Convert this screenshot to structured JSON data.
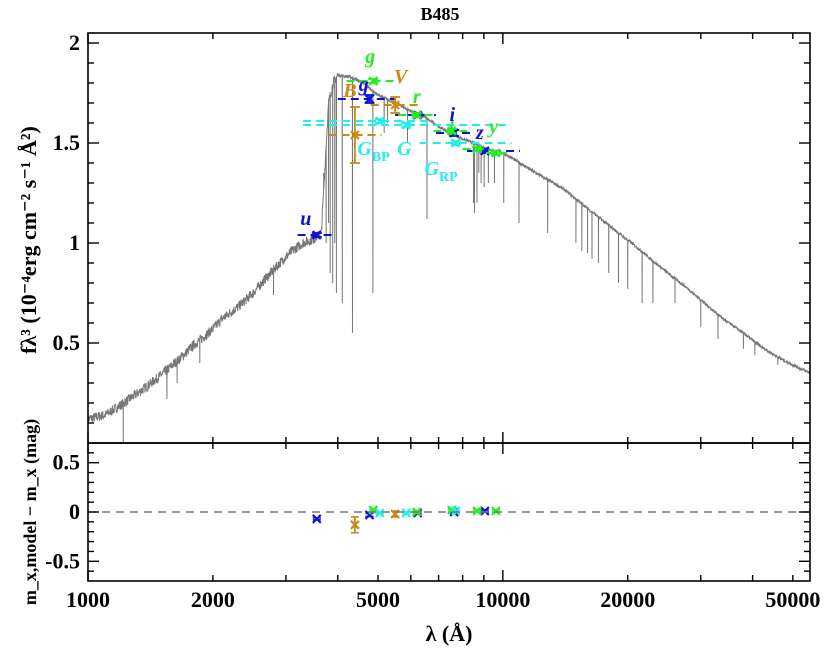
{
  "chart_data": {
    "type": "scatter",
    "title": "B485",
    "xlabel": "λ (Å)",
    "ylabel_top": "fλ³ (10⁻⁴erg cm⁻² s⁻¹ Å²)",
    "ylabel_bottom": "m_x,model − m_x (mag)",
    "x_scale": "log",
    "xlim": [
      1000,
      55000
    ],
    "ylim_top": [
      0,
      2.05
    ],
    "ylim_bottom": [
      -0.7,
      0.7
    ],
    "xticks": [
      1000,
      2000,
      5000,
      10000,
      20000,
      50000
    ],
    "xtick_labels": [
      "1000",
      "2000",
      "5000",
      "10000",
      "20000",
      "50000"
    ],
    "yticks_top": [
      0.5,
      1,
      1.5,
      2
    ],
    "ytick_labels_top": [
      "0.5",
      "1",
      "1.5",
      "2"
    ],
    "yticks_bottom": [
      -0.5,
      0,
      0.5
    ],
    "ytick_labels_bottom": [
      "-0.5",
      "0",
      "0.5"
    ],
    "colors": {
      "sdss": "#1010d0",
      "ps1": "#22ee22",
      "johnson": "#cc8811",
      "gaia": "#22eeee",
      "spectrum": "#777777",
      "zero_line": "#777777"
    },
    "spectrum_continuum": [
      [
        1000,
        0.12
      ],
      [
        1100,
        0.14
      ],
      [
        1200,
        0.19
      ],
      [
        1300,
        0.24
      ],
      [
        1400,
        0.29
      ],
      [
        1500,
        0.34
      ],
      [
        1600,
        0.39
      ],
      [
        1700,
        0.44
      ],
      [
        1800,
        0.49
      ],
      [
        1900,
        0.53
      ],
      [
        2000,
        0.57
      ],
      [
        2100,
        0.62
      ],
      [
        2300,
        0.68
      ],
      [
        2500,
        0.75
      ],
      [
        2700,
        0.83
      ],
      [
        2900,
        0.9
      ],
      [
        3100,
        0.96
      ],
      [
        3300,
        1.0
      ],
      [
        3500,
        1.02
      ],
      [
        3650,
        1.05
      ],
      [
        3800,
        1.7
      ],
      [
        3900,
        1.8
      ],
      [
        4000,
        1.84
      ],
      [
        4300,
        1.83
      ],
      [
        4600,
        1.8
      ],
      [
        5000,
        1.74
      ],
      [
        5500,
        1.7
      ],
      [
        6000,
        1.66
      ],
      [
        6500,
        1.63
      ],
      [
        7000,
        1.58
      ],
      [
        7500,
        1.55
      ],
      [
        8000,
        1.52
      ],
      [
        8500,
        1.5
      ],
      [
        9000,
        1.48
      ],
      [
        9500,
        1.46
      ],
      [
        10000,
        1.45
      ],
      [
        11000,
        1.4
      ],
      [
        12000,
        1.35
      ],
      [
        13000,
        1.31
      ],
      [
        14000,
        1.27
      ],
      [
        15000,
        1.22
      ],
      [
        17000,
        1.13
      ],
      [
        19000,
        1.05
      ],
      [
        21000,
        0.98
      ],
      [
        23000,
        0.91
      ],
      [
        25000,
        0.85
      ],
      [
        28000,
        0.77
      ],
      [
        31000,
        0.69
      ],
      [
        34000,
        0.62
      ],
      [
        38000,
        0.55
      ],
      [
        42000,
        0.48
      ],
      [
        46000,
        0.43
      ],
      [
        50000,
        0.39
      ],
      [
        55000,
        0.35
      ]
    ],
    "spectrum_absorption_lines": [
      [
        1216,
        0.0
      ],
      [
        1550,
        0.22
      ],
      [
        1640,
        0.3
      ],
      [
        1860,
        0.4
      ],
      [
        2800,
        0.74
      ],
      [
        3700,
        1.35
      ],
      [
        3750,
        1.0
      ],
      [
        3800,
        1.1
      ],
      [
        3835,
        0.85
      ],
      [
        3889,
        0.8
      ],
      [
        3934,
        1.0
      ],
      [
        3970,
        0.75
      ],
      [
        4101,
        0.7
      ],
      [
        4340,
        0.55
      ],
      [
        4861,
        0.75
      ],
      [
        5175,
        1.55
      ],
      [
        5270,
        1.6
      ],
      [
        5890,
        1.5
      ],
      [
        6563,
        1.12
      ],
      [
        8498,
        1.2
      ],
      [
        8542,
        1.15
      ],
      [
        8662,
        1.2
      ],
      [
        8750,
        1.35
      ],
      [
        8863,
        1.3
      ],
      [
        9015,
        1.28
      ],
      [
        9229,
        1.3
      ],
      [
        9546,
        1.3
      ],
      [
        10049,
        1.2
      ],
      [
        10938,
        1.1
      ],
      [
        12818,
        1.05
      ],
      [
        15000,
        1.0
      ],
      [
        15500,
        0.96
      ],
      [
        16000,
        0.95
      ],
      [
        16400,
        0.92
      ],
      [
        17000,
        0.9
      ],
      [
        18000,
        0.85
      ],
      [
        19000,
        0.8
      ],
      [
        20000,
        0.77
      ],
      [
        21661,
        0.7
      ],
      [
        23000,
        0.7
      ],
      [
        26000,
        0.7
      ],
      [
        30000,
        0.58
      ],
      [
        33000,
        0.52
      ],
      [
        38000,
        0.47
      ],
      [
        40500,
        0.44
      ],
      [
        46000,
        0.39
      ],
      [
        52000,
        0.36
      ]
    ],
    "photometry": [
      {
        "band": "u",
        "system": "sdss",
        "x": 3560,
        "xerr": [
          3200,
          3900
        ],
        "y": 1.04,
        "yerr": 0.01,
        "resid": -0.07,
        "resid_err": 0.01
      },
      {
        "band": "g",
        "system": "sdss",
        "x": 4770,
        "xerr": [
          4000,
          5500
        ],
        "y": 1.72,
        "yerr": 0.02,
        "resid": -0.03,
        "resid_err": 0.015
      },
      {
        "band": "r",
        "system": "sdss",
        "x": 6230,
        "xerr": [
          5500,
          6900
        ],
        "y": 1.64,
        "yerr": 0.01,
        "resid": -0.01,
        "resid_err": 0.01
      },
      {
        "band": "i",
        "system": "sdss",
        "x": 7630,
        "xerr": [
          6900,
          8400
        ],
        "y": 1.55,
        "yerr": 0.015,
        "resid": 0.0,
        "resid_err": 0.01
      },
      {
        "band": "z",
        "system": "sdss",
        "x": 9050,
        "xerr": [
          8200,
          11000
        ],
        "y": 1.46,
        "yerr": 0.01,
        "resid": 0.01,
        "resid_err": 0.01
      },
      {
        "band": "B",
        "system": "johnson",
        "x": 4400,
        "xerr": [
          3800,
          5100
        ],
        "y": 1.54,
        "yerr": 0.14,
        "resid": -0.13,
        "resid_err": 0.08
      },
      {
        "band": "V",
        "system": "johnson",
        "x": 5500,
        "xerr": [
          4800,
          6400
        ],
        "y": 1.69,
        "yerr": 0.04,
        "resid": -0.02,
        "resid_err": 0.03
      },
      {
        "band": "g",
        "system": "ps1",
        "x": 4870,
        "xerr": [
          4200,
          5500
        ],
        "y": 1.81,
        "yerr": 0.01,
        "resid": 0.02,
        "resid_err": 0.01
      },
      {
        "band": "r",
        "system": "ps1",
        "x": 6200,
        "xerr": [
          5600,
          6900
        ],
        "y": 1.64,
        "yerr": 0.01,
        "resid": 0.0,
        "resid_err": 0.01
      },
      {
        "band": "i",
        "system": "ps1",
        "x": 7530,
        "xerr": [
          6800,
          8300
        ],
        "y": 1.56,
        "yerr": 0.01,
        "resid": 0.02,
        "resid_err": 0.01
      },
      {
        "band": "z",
        "system": "ps1",
        "x": 8670,
        "xerr": [
          8000,
          9300
        ],
        "y": 1.47,
        "yerr": 0.01,
        "resid": 0.01,
        "resid_err": 0.01
      },
      {
        "band": "y",
        "system": "ps1",
        "x": 9620,
        "xerr": [
          9100,
          10300
        ],
        "y": 1.45,
        "yerr": 0.01,
        "resid": 0.01,
        "resid_err": 0.01
      },
      {
        "band": "G",
        "system": "gaia",
        "x": 5850,
        "xerr": [
          3300,
          10300
        ],
        "y": 1.59,
        "yerr": 0.01,
        "resid": -0.01,
        "resid_err": 0.01
      },
      {
        "band": "G_BP",
        "system": "gaia",
        "x": 5050,
        "xerr": [
          3300,
          6700
        ],
        "y": 1.61,
        "yerr": 0.01,
        "resid": -0.01,
        "resid_err": 0.01
      },
      {
        "band": "G_RP",
        "system": "gaia",
        "x": 7700,
        "xerr": [
          6300,
          10500
        ],
        "y": 1.5,
        "yerr": 0.01,
        "resid": 0.01,
        "resid_err": 0.01
      }
    ],
    "band_labels": [
      {
        "text": "u",
        "color": "sdss",
        "x": 3350,
        "y": 1.09
      },
      {
        "text": "g",
        "color": "sdss",
        "x": 4620,
        "y": 1.76
      },
      {
        "text": "g",
        "color": "ps1",
        "x": 4790,
        "y": 1.9
      },
      {
        "text": "B",
        "color": "johnson",
        "x": 4280,
        "y": 1.73
      },
      {
        "text": "V",
        "color": "johnson",
        "x": 5670,
        "y": 1.8
      },
      {
        "text": "r",
        "color": "ps1",
        "x": 6200,
        "y": 1.7
      },
      {
        "text": "i",
        "color": "sdss",
        "x": 7550,
        "y": 1.61
      },
      {
        "text": "i",
        "color": "ps1",
        "x": 7500,
        "y": 1.54
      },
      {
        "text": "z",
        "color": "sdss",
        "x": 8800,
        "y": 1.52
      },
      {
        "text": "y",
        "color": "ps1",
        "x": 9500,
        "y": 1.55
      },
      {
        "text": "G",
        "color": "gaia",
        "x": 4880,
        "y": 1.44,
        "sub": "BP"
      },
      {
        "text": "G",
        "color": "gaia",
        "x": 5790,
        "y": 1.44
      },
      {
        "text": "G",
        "color": "gaia",
        "x": 7100,
        "y": 1.34,
        "sub": "RP"
      }
    ]
  }
}
